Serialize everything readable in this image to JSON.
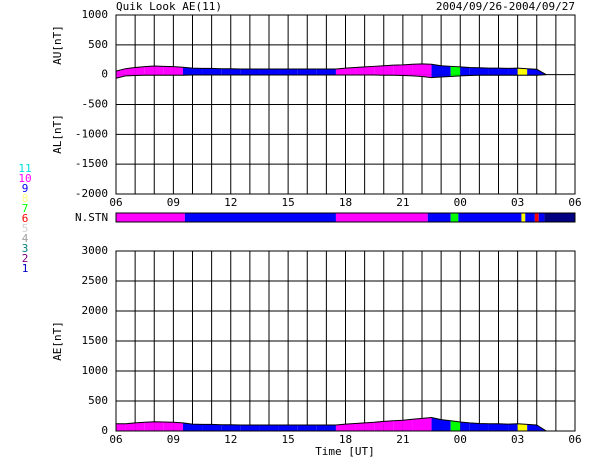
{
  "chart_data": [
    {
      "type": "area",
      "title": "Quik Look AE(11)",
      "subtitle": "2004/09/26-2004/09/27",
      "y_labels": [
        "AU[nT]",
        "AL[nT]"
      ],
      "x": [
        0,
        0.5,
        1,
        1.5,
        2,
        2.5,
        3,
        3.5,
        4,
        4.5,
        5,
        5.5,
        6,
        6.5,
        7,
        7.5,
        8,
        8.5,
        9,
        9.5,
        10,
        10.5,
        11,
        11.5,
        12,
        12.5,
        13,
        13.5,
        14,
        14.5,
        15,
        15.5,
        16,
        16.5,
        17,
        17.5,
        18,
        18.5,
        19,
        19.5,
        20,
        20.5,
        21,
        21.5,
        22,
        22.5
      ],
      "series": [
        {
          "name": "AU",
          "values": [
            60,
            100,
            120,
            135,
            145,
            140,
            135,
            125,
            110,
            105,
            105,
            100,
            100,
            95,
            95,
            95,
            95,
            95,
            95,
            95,
            95,
            95,
            95,
            95,
            110,
            120,
            130,
            140,
            150,
            160,
            165,
            175,
            180,
            175,
            150,
            140,
            130,
            120,
            115,
            110,
            110,
            105,
            110,
            100,
            90,
            0
          ]
        },
        {
          "name": "AL",
          "values": [
            -60,
            -20,
            -15,
            -10,
            -10,
            -10,
            -10,
            -10,
            -5,
            -5,
            -5,
            -5,
            -5,
            -5,
            -5,
            -5,
            -5,
            -5,
            -5,
            -5,
            -5,
            -5,
            -5,
            -5,
            -5,
            -5,
            -5,
            -5,
            -10,
            -10,
            -15,
            -20,
            -30,
            -50,
            -40,
            -30,
            -20,
            -15,
            -10,
            -10,
            -10,
            -10,
            -10,
            -10,
            -10,
            0
          ]
        }
      ],
      "xlim": [
        0,
        24
      ],
      "xticks": [
        {
          "value": 0,
          "label": "06"
        },
        {
          "value": 3,
          "label": "09"
        },
        {
          "value": 6,
          "label": "12"
        },
        {
          "value": 9,
          "label": "15"
        },
        {
          "value": 12,
          "label": "18"
        },
        {
          "value": 15,
          "label": "21"
        },
        {
          "value": 18,
          "label": "00"
        },
        {
          "value": 21,
          "label": "03"
        },
        {
          "value": 24,
          "label": "06"
        }
      ],
      "xminorticks": [
        1,
        2,
        4,
        5,
        7,
        8,
        10,
        11,
        13,
        14,
        16,
        17,
        19,
        20,
        22,
        23
      ],
      "ylim": [
        -2000,
        1000
      ],
      "yticks": [
        1000,
        500,
        0,
        -500,
        -1000,
        -1500,
        -2000
      ],
      "grid": true
    },
    {
      "type": "area",
      "y_label": "AE[nT]",
      "x_label": "Time [UT]",
      "x": [
        0,
        0.5,
        1,
        1.5,
        2,
        2.5,
        3,
        3.5,
        4,
        4.5,
        5,
        5.5,
        6,
        6.5,
        7,
        7.5,
        8,
        8.5,
        9,
        9.5,
        10,
        10.5,
        11,
        11.5,
        12,
        12.5,
        13,
        13.5,
        14,
        14.5,
        15,
        15.5,
        16,
        16.5,
        17,
        17.5,
        18,
        18.5,
        19,
        19.5,
        20,
        20.5,
        21,
        21.5,
        22,
        22.5
      ],
      "series": [
        {
          "name": "AE",
          "values": [
            120,
            120,
            135,
            145,
            155,
            150,
            145,
            135,
            115,
            110,
            110,
            105,
            105,
            100,
            100,
            100,
            100,
            100,
            100,
            100,
            100,
            100,
            100,
            100,
            115,
            125,
            135,
            145,
            160,
            170,
            180,
            195,
            210,
            225,
            190,
            170,
            150,
            135,
            125,
            120,
            120,
            115,
            120,
            110,
            100,
            0
          ]
        }
      ],
      "xlim": [
        0,
        24
      ],
      "xticks": [
        {
          "value": 0,
          "label": "06"
        },
        {
          "value": 3,
          "label": "09"
        },
        {
          "value": 6,
          "label": "12"
        },
        {
          "value": 9,
          "label": "15"
        },
        {
          "value": 12,
          "label": "18"
        },
        {
          "value": 15,
          "label": "21"
        },
        {
          "value": 18,
          "label": "00"
        },
        {
          "value": 21,
          "label": "03"
        },
        {
          "value": 24,
          "label": "06"
        }
      ],
      "xminorticks": [
        1,
        2,
        4,
        5,
        7,
        8,
        10,
        11,
        13,
        14,
        16,
        17,
        19,
        20,
        22,
        23
      ],
      "ylim": [
        0,
        3000
      ],
      "yticks": [
        3000,
        2500,
        2000,
        1500,
        1000,
        500,
        0
      ],
      "grid": true
    }
  ],
  "stations": {
    "label": "N.STN",
    "legend": [
      {
        "label": "11",
        "color": "#00e0e0"
      },
      {
        "label": "10",
        "color": "#ff00ff"
      },
      {
        "label": "9",
        "color": "#0000ff"
      },
      {
        "label": "8",
        "color": "#ffff80"
      },
      {
        "label": "7",
        "color": "#00ff00"
      },
      {
        "label": "6",
        "color": "#ff0000"
      },
      {
        "label": "5",
        "color": "#d0d0d0"
      },
      {
        "label": "4",
        "color": "#a0a0a0"
      },
      {
        "label": "3",
        "color": "#008080"
      },
      {
        "label": "2",
        "color": "#800080"
      },
      {
        "label": "1",
        "color": "#0000c0"
      }
    ],
    "segments": [
      {
        "start": 0,
        "end": 3.6,
        "color": "#ff00ff"
      },
      {
        "start": 3.6,
        "end": 11.5,
        "color": "#0000ff"
      },
      {
        "start": 11.5,
        "end": 16.3,
        "color": "#ff00ff"
      },
      {
        "start": 16.3,
        "end": 17.5,
        "color": "#0000ff"
      },
      {
        "start": 17.5,
        "end": 17.9,
        "color": "#00ff00"
      },
      {
        "start": 17.9,
        "end": 21.2,
        "color": "#0000ff"
      },
      {
        "start": 21.2,
        "end": 21.4,
        "color": "#ffff00"
      },
      {
        "start": 21.4,
        "end": 21.9,
        "color": "#0000ff"
      },
      {
        "start": 21.9,
        "end": 22.1,
        "color": "#ff0000"
      },
      {
        "start": 22.1,
        "end": 22.4,
        "color": "#0000ff"
      },
      {
        "start": 22.4,
        "end": 24,
        "color": "#000080"
      }
    ]
  }
}
